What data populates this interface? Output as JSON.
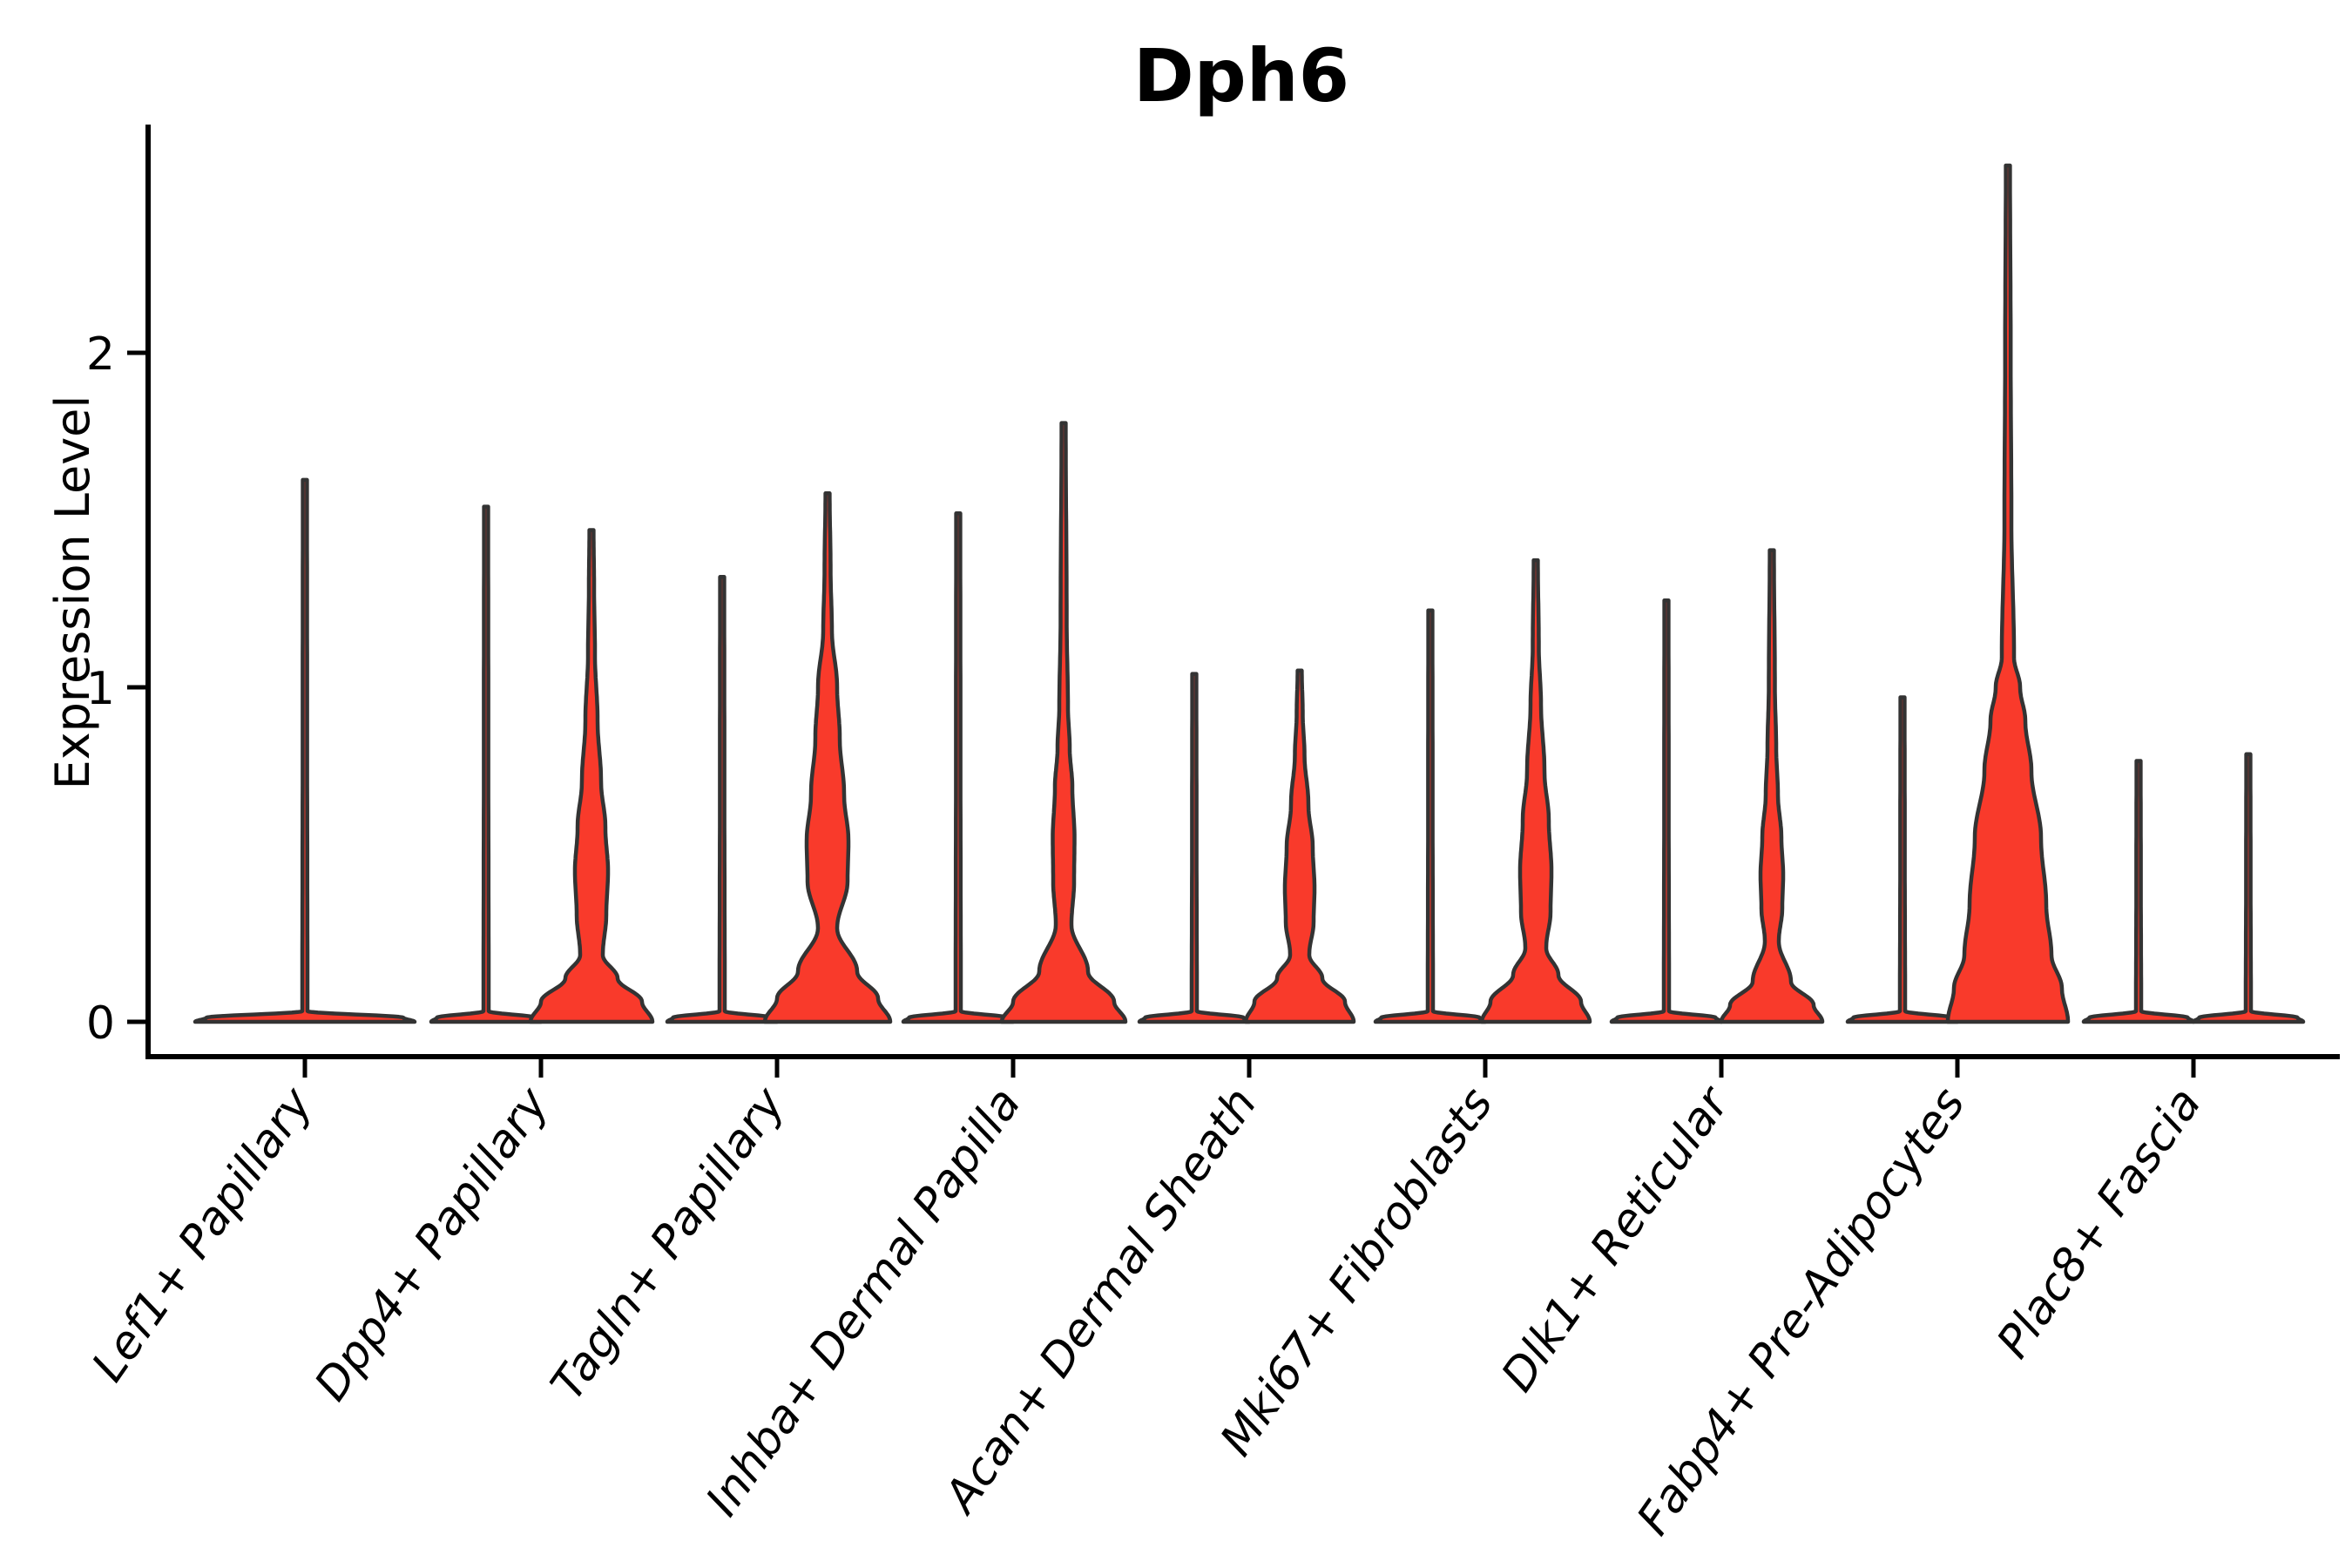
{
  "chart_data": {
    "type": "violin",
    "title": "Dph6",
    "ylabel": "Expression Level",
    "xlabel": "",
    "ytick_labels": [
      "0",
      "1",
      "2"
    ],
    "ytick_values": [
      0,
      1,
      2
    ],
    "ylim": [
      0,
      2.68
    ],
    "grid": false,
    "legend": "none",
    "fill_color": "#F93A2B",
    "outline_color": "#333333",
    "axis_color": "#000000",
    "categories": [
      {
        "label": "Lef1+ Papillary",
        "violins": [
          {
            "pos": "center",
            "kind": "flat",
            "base_halfwidth": 126,
            "max": 1.62
          }
        ]
      },
      {
        "label": "Dpp4+ Papillary",
        "violins": [
          {
            "pos": "left",
            "kind": "flat",
            "base_halfwidth": 63,
            "max": 1.54
          },
          {
            "pos": "right",
            "kind": "body",
            "max": 1.47,
            "profile": [
              [
                0,
                70
              ],
              [
                0.06,
                58
              ],
              [
                0.13,
                30
              ],
              [
                0.2,
                13
              ],
              [
                0.32,
                17
              ],
              [
                0.45,
                19
              ],
              [
                0.58,
                16
              ],
              [
                0.72,
                11
              ],
              [
                0.9,
                7
              ],
              [
                1.1,
                4
              ],
              [
                1.3,
                3
              ]
            ]
          }
        ]
      },
      {
        "label": "Tagln+ Papillary",
        "violins": [
          {
            "pos": "left",
            "kind": "flat",
            "base_halfwidth": 63,
            "max": 1.33
          },
          {
            "pos": "right",
            "kind": "body",
            "max": 1.58,
            "profile": [
              [
                0,
                72
              ],
              [
                0.07,
                58
              ],
              [
                0.15,
                34
              ],
              [
                0.28,
                11
              ],
              [
                0.42,
                23
              ],
              [
                0.54,
                24
              ],
              [
                0.68,
                19
              ],
              [
                0.85,
                14
              ],
              [
                1.0,
                11
              ],
              [
                1.17,
                5
              ],
              [
                1.35,
                3.5
              ]
            ]
          }
        ]
      },
      {
        "label": "Inhba+ Dermal Papilla",
        "violins": [
          {
            "pos": "left",
            "kind": "flat",
            "base_halfwidth": 63,
            "max": 1.52
          },
          {
            "pos": "right",
            "kind": "body",
            "max": 1.79,
            "profile": [
              [
                0,
                71
              ],
              [
                0.06,
                58
              ],
              [
                0.15,
                28
              ],
              [
                0.29,
                9
              ],
              [
                0.42,
                12
              ],
              [
                0.55,
                12.5
              ],
              [
                0.7,
                10
              ],
              [
                0.82,
                7
              ],
              [
                0.94,
                5
              ],
              [
                1.2,
                3.5
              ]
            ]
          }
        ]
      },
      {
        "label": "Acan+ Dermal Sheath",
        "violins": [
          {
            "pos": "left",
            "kind": "flat",
            "base_halfwidth": 63,
            "max": 1.04
          },
          {
            "pos": "right",
            "kind": "body",
            "max": 1.05,
            "profile": [
              [
                0,
                62
              ],
              [
                0.06,
                52
              ],
              [
                0.13,
                26
              ],
              [
                0.2,
                11
              ],
              [
                0.3,
                16
              ],
              [
                0.4,
                17
              ],
              [
                0.52,
                15
              ],
              [
                0.65,
                10
              ],
              [
                0.8,
                5.5
              ],
              [
                0.92,
                3.5
              ]
            ]
          }
        ]
      },
      {
        "label": "Mki67+ Fibroblasts",
        "violins": [
          {
            "pos": "left",
            "kind": "flat",
            "base_halfwidth": 63,
            "max": 1.23
          },
          {
            "pos": "right",
            "kind": "body",
            "max": 1.38,
            "profile": [
              [
                0,
                62
              ],
              [
                0.06,
                52
              ],
              [
                0.14,
                26
              ],
              [
                0.22,
                12
              ],
              [
                0.33,
                17
              ],
              [
                0.45,
                18
              ],
              [
                0.6,
                15
              ],
              [
                0.75,
                10
              ],
              [
                0.95,
                6
              ],
              [
                1.12,
                3.5
              ]
            ]
          }
        ]
      },
      {
        "label": "Dlk1+ Reticular",
        "violins": [
          {
            "pos": "left",
            "kind": "flat",
            "base_halfwidth": 63,
            "max": 1.26
          },
          {
            "pos": "right",
            "kind": "body",
            "max": 1.41,
            "profile": [
              [
                0,
                58
              ],
              [
                0.05,
                48
              ],
              [
                0.12,
                22
              ],
              [
                0.24,
                8
              ],
              [
                0.34,
                12
              ],
              [
                0.44,
                13
              ],
              [
                0.55,
                11
              ],
              [
                0.68,
                7
              ],
              [
                0.82,
                5
              ],
              [
                1.0,
                3.5
              ]
            ]
          }
        ]
      },
      {
        "label": "Fabp4+ Pre-Adipocytes",
        "violins": [
          {
            "pos": "left",
            "kind": "flat",
            "base_halfwidth": 63,
            "max": 0.97
          },
          {
            "pos": "right",
            "kind": "body",
            "max": 2.56,
            "profile": [
              [
                0,
                69
              ],
              [
                0.1,
                62
              ],
              [
                0.2,
                50
              ],
              [
                0.35,
                44
              ],
              [
                0.55,
                38
              ],
              [
                0.75,
                27
              ],
              [
                0.9,
                20
              ],
              [
                1.0,
                14
              ],
              [
                1.09,
                7
              ],
              [
                1.5,
                4
              ],
              [
                2.0,
                3.2
              ]
            ]
          }
        ]
      },
      {
        "label": "Plac8+ Fascia",
        "violins": [
          {
            "pos": "left",
            "kind": "flat",
            "base_halfwidth": 63,
            "max": 0.78
          },
          {
            "pos": "right2",
            "kind": "flat",
            "base_halfwidth": 63,
            "max": 0.8
          }
        ]
      }
    ]
  }
}
